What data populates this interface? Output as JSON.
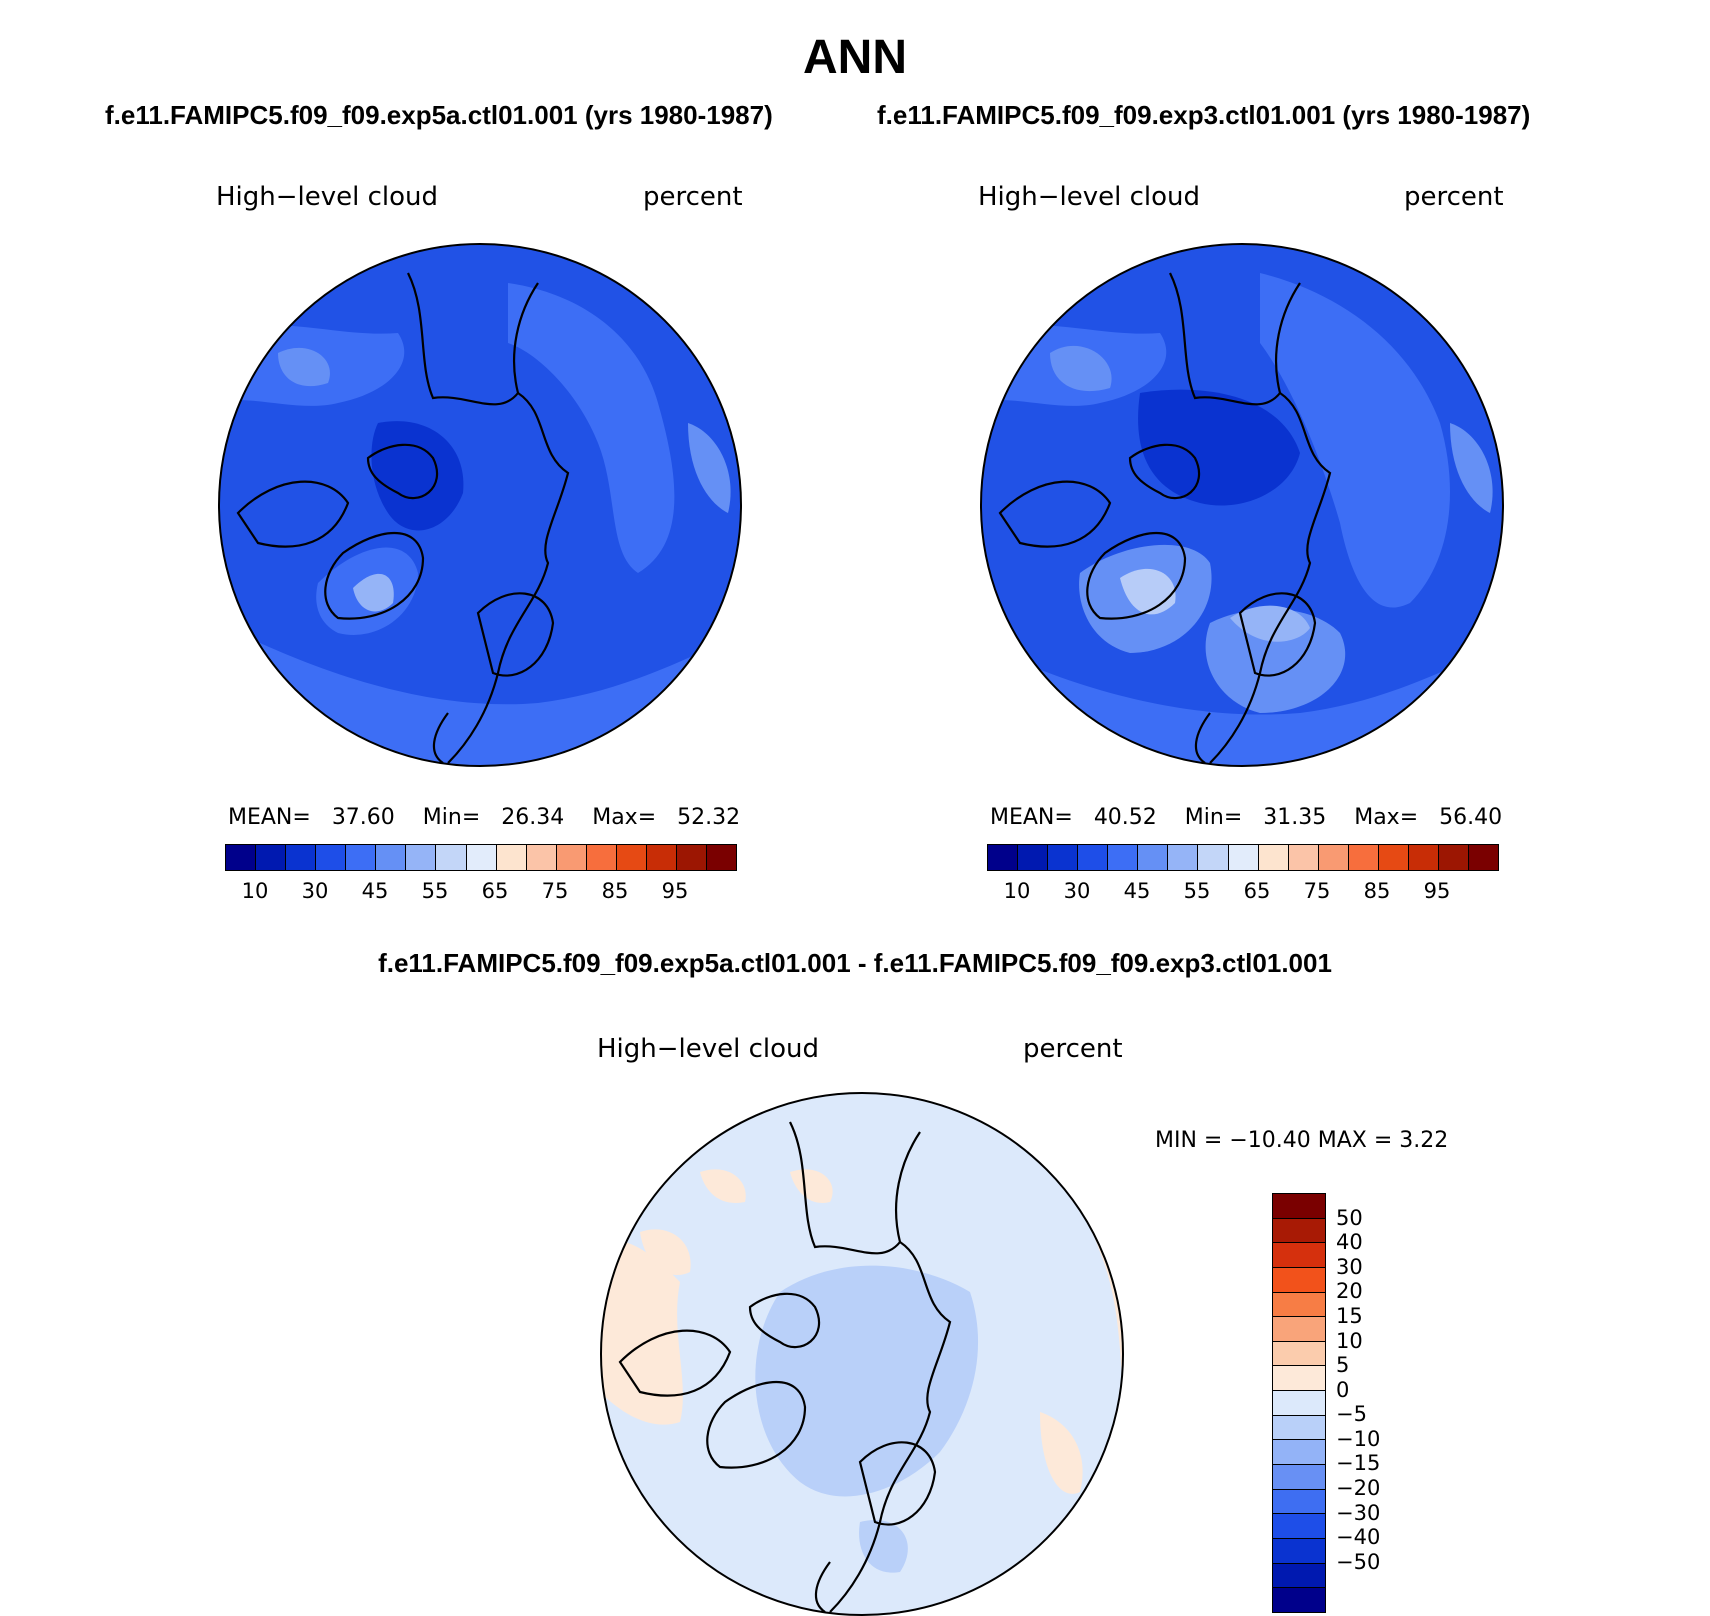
{
  "title": "ANN",
  "panels": [
    {
      "case": "f.e11.FAMIPC5.f09_f09.exp5a.ctl01.001 (yrs 1980-1987)",
      "variable": "High−level cloud",
      "units": "percent",
      "stats": {
        "mean_label": "MEAN=",
        "mean": "37.60",
        "min_label": "Min=",
        "min": "26.34",
        "max_label": "Max=",
        "max": "52.32"
      }
    },
    {
      "case": "f.e11.FAMIPC5.f09_f09.exp3.ctl01.001 (yrs 1980-1987)",
      "variable": "High−level cloud",
      "units": "percent",
      "stats": {
        "mean_label": "MEAN=",
        "mean": "40.52",
        "min_label": "Min=",
        "min": "31.35",
        "max_label": "Max=",
        "max": "56.40"
      }
    }
  ],
  "colorbar": {
    "colors": [
      "#00008b",
      "#0019b0",
      "#0a33d0",
      "#1e4ee8",
      "#3d6ef5",
      "#6590f5",
      "#95b4f7",
      "#c3d6f8",
      "#e2ecfb",
      "#fde4cf",
      "#fbc4a8",
      "#f99a72",
      "#f76e3d",
      "#e64a14",
      "#c82d06",
      "#9c1602",
      "#7a0000"
    ],
    "labels": [
      "10",
      "30",
      "45",
      "55",
      "65",
      "75",
      "85",
      "95"
    ]
  },
  "difference": {
    "title": "f.e11.FAMIPC5.f09_f09.exp5a.ctl01.001 - f.e11.FAMIPC5.f09_f09.exp3.ctl01.001",
    "variable": "High−level cloud",
    "units": "percent",
    "minmax": "MIN = −10.40  MAX =    3.22",
    "colorbar": {
      "colors": [
        "#7a0000",
        "#a81a05",
        "#d5300d",
        "#f2521b",
        "#f77d45",
        "#f9a47a",
        "#fbccad",
        "#fde9d9",
        "#dce9fb",
        "#b9d0f9",
        "#93b3f7",
        "#6890f4",
        "#3e6ef2",
        "#1e4ee8",
        "#0a33d0",
        "#0019b0",
        "#00008b"
      ],
      "labels": [
        "50",
        "40",
        "30",
        "20",
        "15",
        "10",
        "5",
        "0",
        "−5",
        "−10",
        "−15",
        "−20",
        "−30",
        "−40",
        "−50"
      ]
    }
  }
}
